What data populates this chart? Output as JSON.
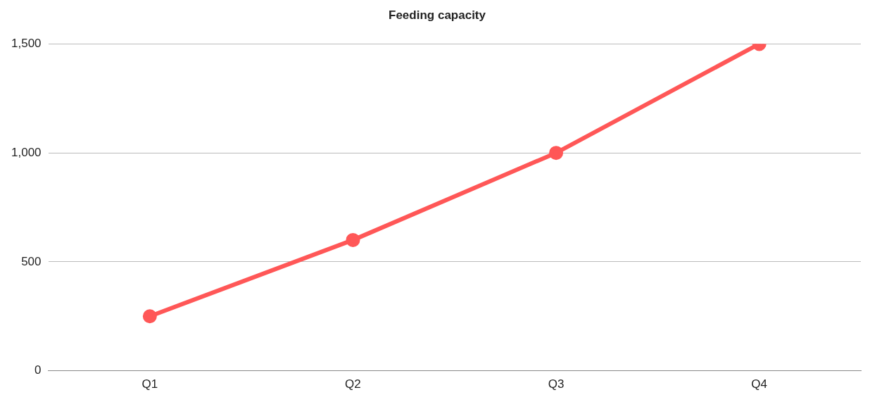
{
  "chart_data": {
    "type": "line",
    "title": "Feeding capacity",
    "categories": [
      "Q1",
      "Q2",
      "Q3",
      "Q4"
    ],
    "series": [
      {
        "color": "#ff5757",
        "values": [
          250,
          600,
          1000,
          1500
        ]
      }
    ],
    "ylim": [
      0,
      1500
    ],
    "yticks": [
      0,
      {
        "value": 500,
        "label": "500"
      },
      {
        "value": 1000,
        "label": "1,000"
      },
      {
        "value": 1500,
        "label": "1,500"
      }
    ],
    "grid": "y",
    "legend": false,
    "marker": "circle",
    "line_style": "solid"
  }
}
